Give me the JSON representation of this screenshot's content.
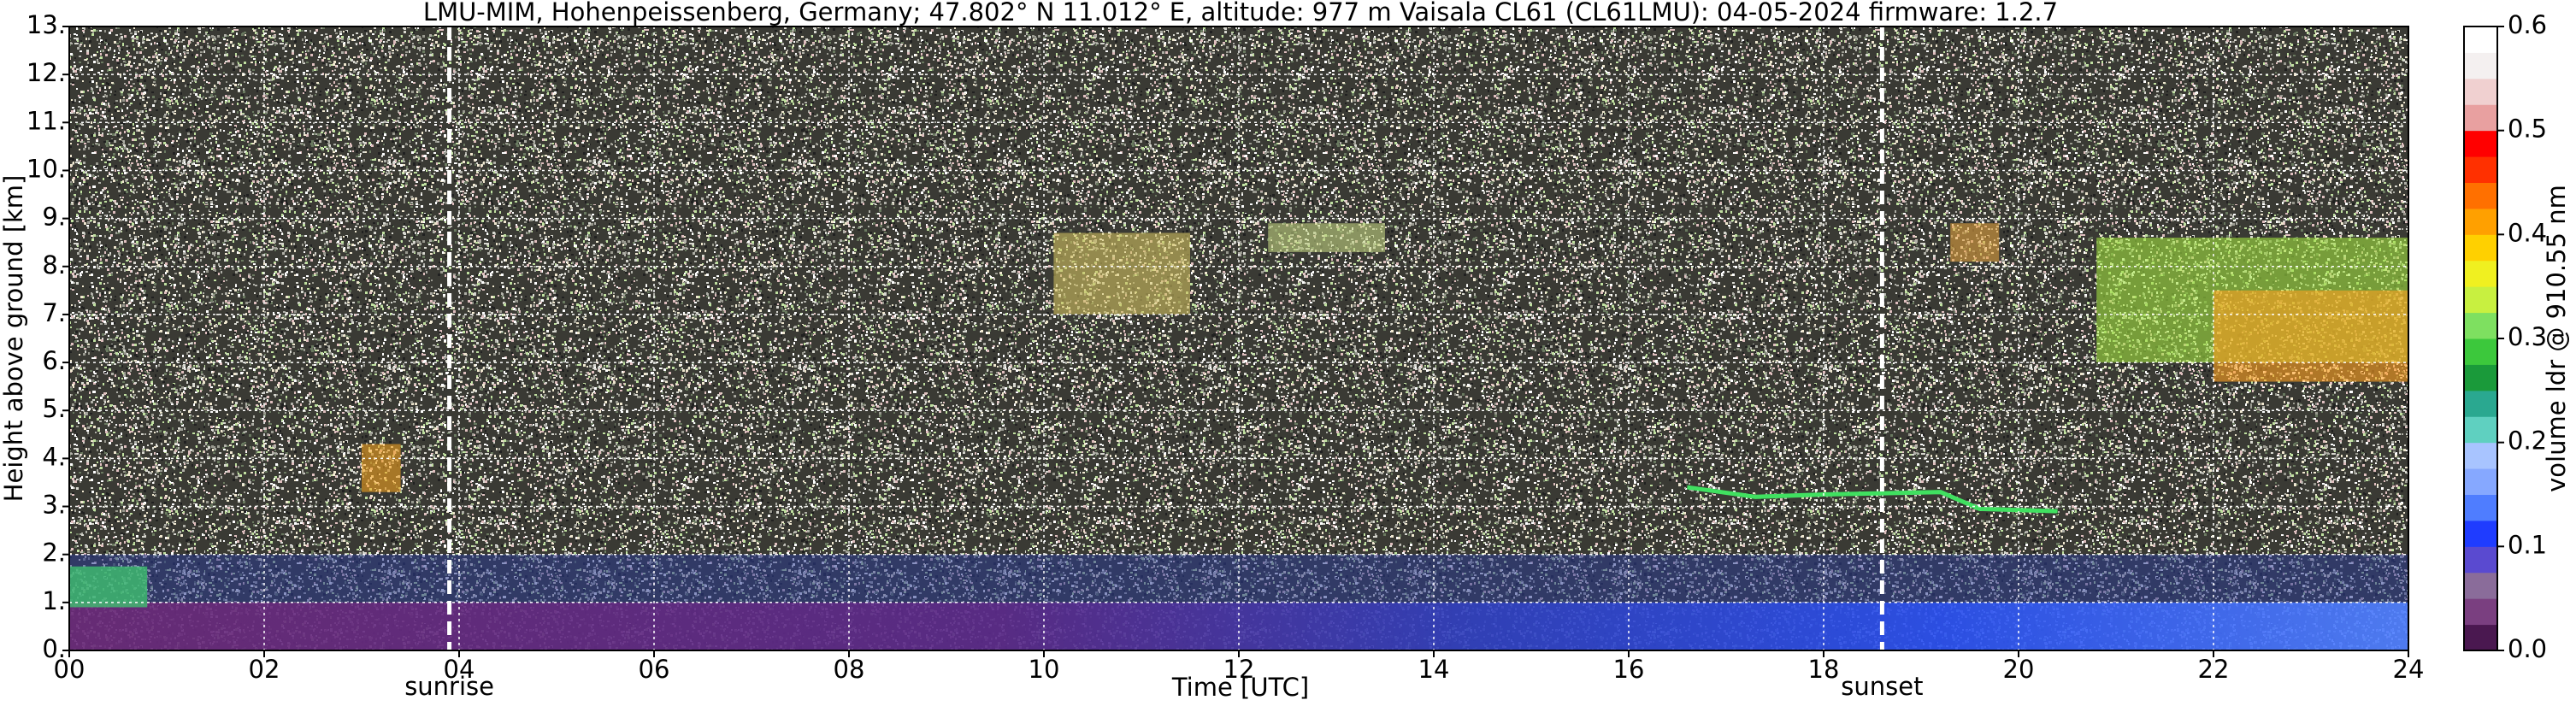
{
  "chart_data": {
    "type": "heatmap",
    "title": "LMU-MIM, Hohenpeissenberg, Germany; 47.802° N 11.012° E, altitude: 977 m    Vaisala CL61 (CL61LMU): 04-05-2024    firmware: 1.2.7",
    "xlabel": "Time [UTC]",
    "ylabel": "Height above ground [km]",
    "xlim": [
      0,
      24
    ],
    "xticks": [
      {
        "value": 0,
        "label": "00"
      },
      {
        "value": 2,
        "label": "02"
      },
      {
        "value": 4,
        "label": "04"
      },
      {
        "value": 6,
        "label": "06"
      },
      {
        "value": 8,
        "label": "08"
      },
      10,
      12,
      14,
      16,
      18,
      20,
      22,
      24
    ],
    "ylim": [
      0,
      13
    ],
    "yticks": [
      {
        "value": 0,
        "label": "0."
      },
      {
        "value": 1,
        "label": "1."
      },
      {
        "value": 2,
        "label": "2."
      },
      {
        "value": 3,
        "label": "3."
      },
      {
        "value": 4,
        "label": "4."
      },
      {
        "value": 5,
        "label": "5."
      },
      {
        "value": 6,
        "label": "6."
      },
      {
        "value": 7,
        "label": "7."
      },
      {
        "value": 8,
        "label": "8."
      },
      {
        "value": 9,
        "label": "9."
      },
      {
        "value": 10,
        "label": "10."
      },
      {
        "value": 11,
        "label": "11."
      },
      {
        "value": 12,
        "label": "12."
      },
      {
        "value": 13,
        "label": "13."
      }
    ],
    "grid": true,
    "annotations": [
      {
        "x": 3.9,
        "label": "sunrise"
      },
      {
        "x": 18.6,
        "label": "sunset"
      }
    ],
    "colorbar": {
      "label": "volume ldr @ 910.55 nm",
      "clim": [
        0,
        0.6
      ],
      "ticks": [
        {
          "value": 0,
          "label": "0.0"
        },
        0.1,
        0.2,
        0.3,
        0.4,
        0.5,
        0.6
      ],
      "colors": [
        "#4a1850",
        "#7a3f80",
        "#8a6c9a",
        "#5a4ad0",
        "#1f3cff",
        "#4f7dff",
        "#86a8ff",
        "#a8c4ff",
        "#5fd0c0",
        "#2aa890",
        "#1a9a3a",
        "#3cc83c",
        "#7ee060",
        "#c8f040",
        "#f0f020",
        "#ffd000",
        "#ffa000",
        "#ff7000",
        "#ff3000",
        "#ff0000",
        "#e8a0a0",
        "#f0d0d0",
        "#f4f0f0",
        "#ffffff"
      ]
    }
  }
}
